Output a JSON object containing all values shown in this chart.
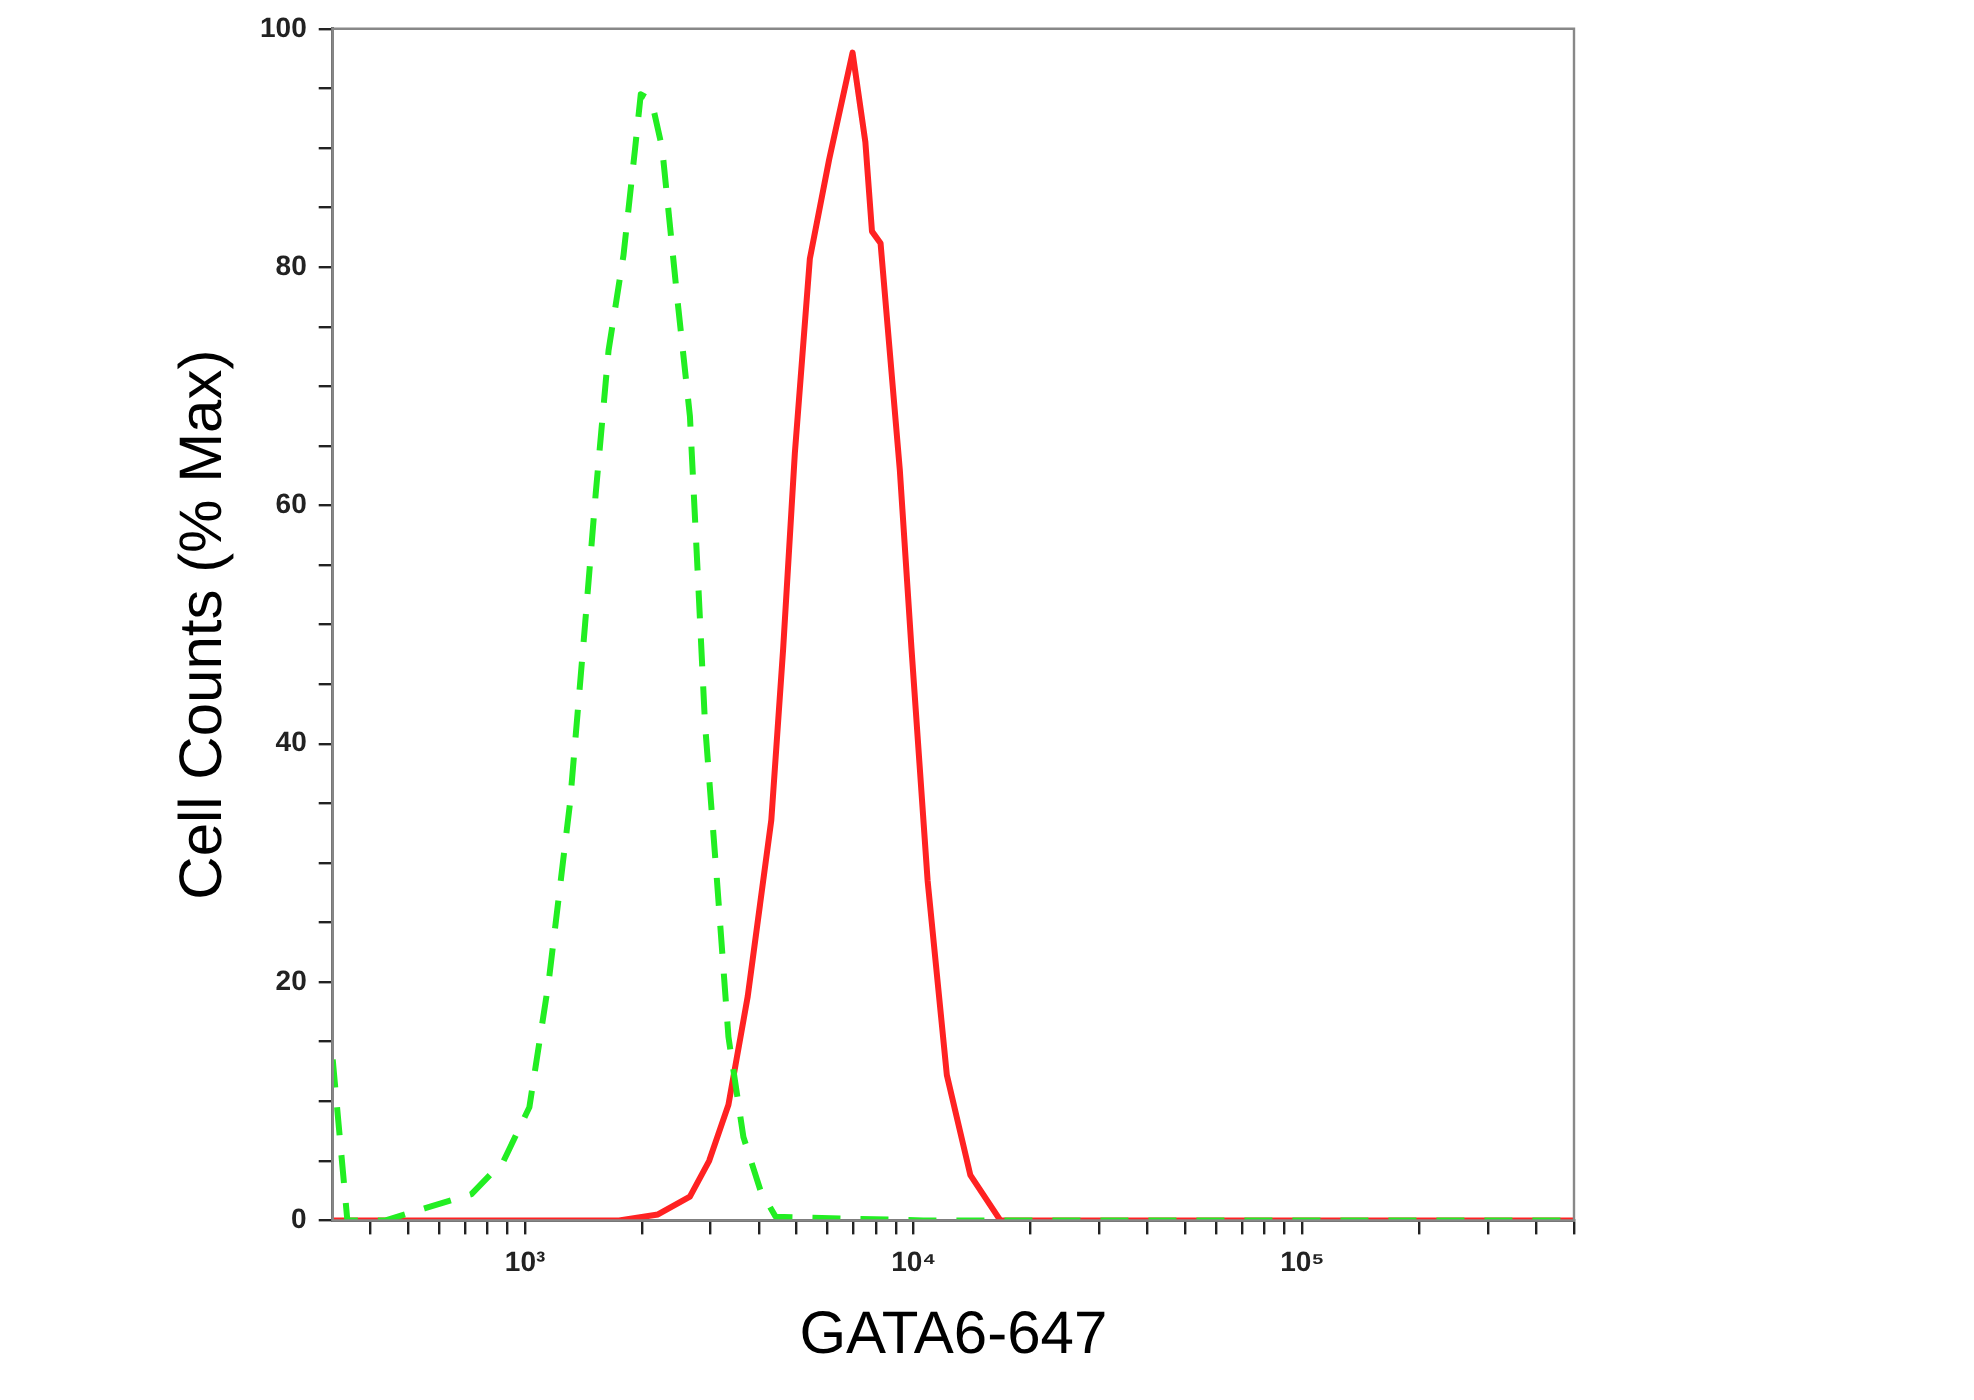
{
  "chart_data": {
    "type": "line",
    "xlabel": "GATA6-647",
    "ylabel": "Cell Counts (% Max)",
    "log": "x",
    "grid": false,
    "legend": false,
    "marker": "none",
    "xlim": [
      320,
      500000
    ],
    "ylim": [
      0,
      100
    ],
    "xticks": [
      {
        "value": 400,
        "label": null
      },
      {
        "value": 500,
        "label": null
      },
      {
        "value": 600,
        "label": null
      },
      {
        "value": 700,
        "label": null
      },
      {
        "value": 800,
        "label": null
      },
      {
        "value": 900,
        "label": null
      },
      {
        "value": 1000,
        "label": "10³"
      },
      {
        "value": 2000,
        "label": null
      },
      {
        "value": 3000,
        "label": null
      },
      {
        "value": 4000,
        "label": null
      },
      {
        "value": 5000,
        "label": null
      },
      {
        "value": 6000,
        "label": null
      },
      {
        "value": 7000,
        "label": null
      },
      {
        "value": 8000,
        "label": null
      },
      {
        "value": 9000,
        "label": null
      },
      {
        "value": 10000,
        "label": "10⁴"
      },
      {
        "value": 20000,
        "label": null
      },
      {
        "value": 30000,
        "label": null
      },
      {
        "value": 40000,
        "label": null
      },
      {
        "value": 50000,
        "label": null
      },
      {
        "value": 60000,
        "label": null
      },
      {
        "value": 70000,
        "label": null
      },
      {
        "value": 80000,
        "label": null
      },
      {
        "value": 90000,
        "label": null
      },
      {
        "value": 100000,
        "label": "10⁵"
      },
      {
        "value": 200000,
        "label": null
      },
      {
        "value": 300000,
        "label": null
      },
      {
        "value": 400000,
        "label": null
      },
      {
        "value": 500000,
        "label": null
      }
    ],
    "yticks": [
      0,
      {
        "value": 5,
        "label": null
      },
      {
        "value": 10,
        "label": null
      },
      {
        "value": 15,
        "label": null
      },
      20,
      {
        "value": 25,
        "label": null
      },
      {
        "value": 30,
        "label": null
      },
      {
        "value": 35,
        "label": null
      },
      40,
      {
        "value": 45,
        "label": null
      },
      {
        "value": 50,
        "label": null
      },
      {
        "value": 55,
        "label": null
      },
      60,
      {
        "value": 65,
        "label": null
      },
      {
        "value": 70,
        "label": null
      },
      {
        "value": 75,
        "label": null
      },
      80,
      {
        "value": 85,
        "label": null
      },
      {
        "value": 90,
        "label": null
      },
      {
        "value": 95,
        "label": null
      },
      100
    ],
    "series": [
      {
        "color": "#22ee22",
        "line_style": "dashed",
        "x": [
          320,
          349,
          438,
          551,
          728,
          881,
          1026,
          1150,
          1305,
          1427,
          1520,
          1640,
          1792,
          1920,
          1985,
          2115,
          2253,
          2462,
          2656,
          2778,
          2904,
          3118,
          3337,
          3646,
          4036,
          4414,
          10590,
          500000
        ],
        "values": [
          13.5,
          0,
          0,
          1,
          2.2,
          5,
          9.5,
          20,
          35,
          50,
          61,
          73,
          81,
          90,
          94.5,
          94,
          90,
          77.5,
          67.5,
          54.7,
          41.7,
          28.5,
          15.4,
          7,
          2.5,
          0.3,
          0,
          0
        ]
      },
      {
        "color": "#ff2222",
        "line_style": "solid",
        "x": [
          320,
          1746,
          2198,
          2656,
          2977,
          3337,
          3741,
          4302,
          4615,
          4946,
          5405,
          6057,
          6962,
          7510,
          7810,
          8218,
          9210,
          9870,
          10860,
          12170,
          13990,
          16710,
          500000
        ],
        "values": [
          0,
          0,
          0.5,
          2,
          5,
          9.7,
          18.8,
          33.6,
          48,
          64.4,
          80.7,
          89,
          98,
          90.5,
          83,
          82,
          63,
          48,
          28.5,
          12.2,
          3.8,
          0,
          0
        ]
      }
    ]
  }
}
